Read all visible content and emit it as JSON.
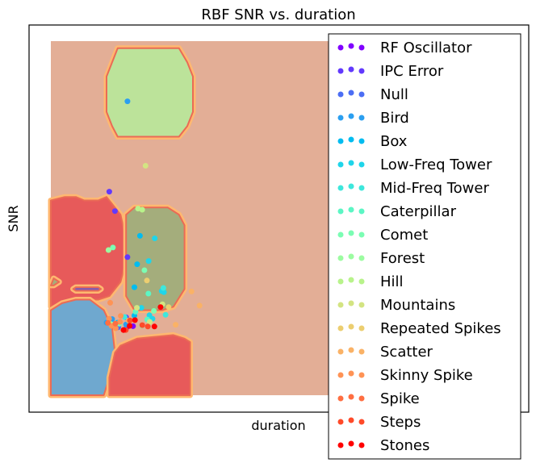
{
  "chart_data": {
    "type": "scatter",
    "title": "RBF SNR vs. duration",
    "xlabel": "duration",
    "ylabel": "SNR",
    "grid": false,
    "xticks": "none",
    "yticks": "none",
    "legend_position": "right",
    "xlim": [
      0,
      100
    ],
    "ylim": [
      0,
      100
    ],
    "background_region_color": "#e3ae96",
    "regions": [
      {
        "color": "#bce39a",
        "points": [
          [
            20,
            90
          ],
          [
            22,
            94
          ],
          [
            24,
            98
          ],
          [
            46,
            98
          ],
          [
            49,
            94
          ],
          [
            51,
            90
          ],
          [
            51,
            80
          ],
          [
            49,
            76
          ],
          [
            46,
            73
          ],
          [
            24,
            73
          ],
          [
            22,
            76
          ],
          [
            20,
            80
          ]
        ]
      },
      {
        "color": "#e75a5a",
        "points": [
          [
            0,
            55
          ],
          [
            5,
            56
          ],
          [
            9,
            56
          ],
          [
            12,
            55
          ],
          [
            17,
            55
          ],
          [
            20,
            56
          ],
          [
            22,
            54
          ],
          [
            25,
            51
          ],
          [
            27,
            44
          ],
          [
            27,
            38
          ],
          [
            25,
            32
          ],
          [
            21,
            28
          ],
          [
            17,
            27
          ],
          [
            11,
            27
          ],
          [
            7,
            26
          ],
          [
            3,
            26
          ],
          [
            0,
            25
          ]
        ]
      },
      {
        "color": "#a4ad7c",
        "points": [
          [
            27,
            51
          ],
          [
            30,
            53
          ],
          [
            42,
            53
          ],
          [
            46,
            51
          ],
          [
            48,
            48
          ],
          [
            48,
            30
          ],
          [
            44,
            25
          ],
          [
            40,
            24
          ],
          [
            30,
            24
          ],
          [
            27,
            28
          ]
        ]
      },
      {
        "color": "#6fa8cf",
        "points": [
          [
            0,
            24
          ],
          [
            4,
            26
          ],
          [
            9,
            27
          ],
          [
            14,
            27
          ],
          [
            19,
            24
          ],
          [
            22,
            19
          ],
          [
            23,
            12
          ],
          [
            21,
            5
          ],
          [
            19,
            0
          ],
          [
            0,
            0
          ]
        ]
      },
      {
        "color": "#e75a5a",
        "points": [
          [
            23,
            12
          ],
          [
            25,
            14
          ],
          [
            31,
            16
          ],
          [
            44,
            17
          ],
          [
            48,
            16
          ],
          [
            50,
            15
          ],
          [
            50,
            11
          ],
          [
            50,
            7
          ],
          [
            50,
            0
          ],
          [
            21,
            0
          ],
          [
            21,
            5
          ]
        ]
      },
      {
        "color": "#7e5bb5",
        "points": [
          [
            8,
            30
          ],
          [
            9,
            30.5
          ],
          [
            17,
            30.5
          ],
          [
            18,
            30
          ],
          [
            17,
            29.5
          ],
          [
            9,
            29.5
          ]
        ]
      },
      {
        "color": "#a4ad7c",
        "points": [
          [
            0,
            31
          ],
          [
            1,
            33
          ],
          [
            3,
            32
          ],
          [
            1,
            31
          ]
        ]
      }
    ],
    "series": [
      {
        "name": "RF Oscillator",
        "color": "#8000ff",
        "points": [
          [
            29.5,
            19.5
          ],
          [
            27.3,
            19.2
          ]
        ]
      },
      {
        "name": "IPC Error",
        "color": "#6239fd",
        "points": [
          [
            23,
            52
          ],
          [
            21,
            57.5
          ],
          [
            27.5,
            39
          ],
          [
            27,
            22
          ]
        ]
      },
      {
        "name": "Null",
        "color": "#4c6ef4",
        "points": [
          [
            23.4,
            19.4
          ],
          [
            24.2,
            19.2
          ]
        ]
      },
      {
        "name": "Bird",
        "color": "#2b9ff0",
        "points": [
          [
            27.5,
            83
          ],
          [
            26.5,
            18.5
          ],
          [
            20,
            20.5
          ],
          [
            23,
            20.1
          ],
          [
            22,
            21.5
          ],
          [
            27,
            20
          ]
        ]
      },
      {
        "name": "Box",
        "color": "#00bcf0",
        "points": [
          [
            32,
            45
          ],
          [
            31,
            37
          ],
          [
            30,
            30.5
          ],
          [
            30,
            22.5
          ],
          [
            24,
            20.5
          ]
        ]
      },
      {
        "name": "Low-Freq Tower",
        "color": "#1fd5ea",
        "points": [
          [
            37.3,
            44.3
          ],
          [
            35.1,
            37.9
          ],
          [
            39.8,
            29.4
          ],
          [
            40.6,
            29.1
          ],
          [
            32.5,
            24.7
          ],
          [
            36.5,
            21.6
          ],
          [
            35.4,
            22.6
          ]
        ]
      },
      {
        "name": "Mid-Freq Tower",
        "color": "#3ee7dc",
        "points": [
          [
            40.4,
            30.3
          ],
          [
            26.5,
            22.1
          ],
          [
            41.2,
            22.7
          ]
        ]
      },
      {
        "name": "Caterpillar",
        "color": "#5cf6c4",
        "points": [
          [
            35,
            28.7
          ],
          [
            30.4,
            23.6
          ],
          [
            34.6,
            21.4
          ]
        ]
      },
      {
        "name": "Comet",
        "color": "#7bfdb3",
        "points": [
          [
            22.3,
            41.7
          ],
          [
            33.6,
            35.3
          ],
          [
            24.6,
            20.2
          ],
          [
            37,
            23.8
          ],
          [
            32.7,
            19.7
          ]
        ]
      },
      {
        "name": "Forest",
        "color": "#9cfca1",
        "points": [
          [
            20.7,
            41
          ],
          [
            21.5,
            20.1
          ]
        ]
      },
      {
        "name": "Hill",
        "color": "#b8f38b",
        "points": [
          [
            31.3,
            52.7
          ],
          [
            32.8,
            52.4
          ]
        ]
      },
      {
        "name": "Mountains",
        "color": "#d3e482",
        "points": [
          [
            34,
            64.8
          ],
          [
            40.1,
            25.7
          ],
          [
            30.9,
            24.7
          ],
          [
            35.5,
            20.7
          ]
        ]
      },
      {
        "name": "Repeated Spikes",
        "color": "#ecce70",
        "points": [
          [
            42.3,
            24.9
          ],
          [
            34.5,
            32.4
          ]
        ]
      },
      {
        "name": "Scatter",
        "color": "#fab266",
        "points": [
          [
            50.5,
            29.3
          ],
          [
            53.4,
            25.3
          ],
          [
            44.8,
            19.9
          ],
          [
            27.9,
            21.1
          ]
        ]
      },
      {
        "name": "Skinny Spike",
        "color": "#ff9355",
        "points": [
          [
            20.9,
            21.6
          ],
          [
            25.1,
            22.4
          ],
          [
            21.3,
            26.1
          ],
          [
            21.8,
            19.6
          ],
          [
            23.3,
            18.9
          ],
          [
            24.8,
            20.7
          ]
        ]
      },
      {
        "name": "Spike",
        "color": "#ff6e41",
        "points": [
          [
            23.2,
            20.2
          ],
          [
            20.5,
            20.4
          ]
        ]
      },
      {
        "name": "Steps",
        "color": "#ff4a29",
        "points": [
          [
            26.9,
            18.4
          ],
          [
            28.4,
            21.1
          ],
          [
            34.8,
            19.4
          ],
          [
            32.8,
            19.8
          ]
        ]
      },
      {
        "name": "Stones",
        "color": "#ff0000",
        "points": [
          [
            30.2,
            21.2
          ],
          [
            28.3,
            19.6
          ],
          [
            39.4,
            24.9
          ],
          [
            37.2,
            19.4
          ],
          [
            26.1,
            18.4
          ]
        ]
      }
    ]
  }
}
